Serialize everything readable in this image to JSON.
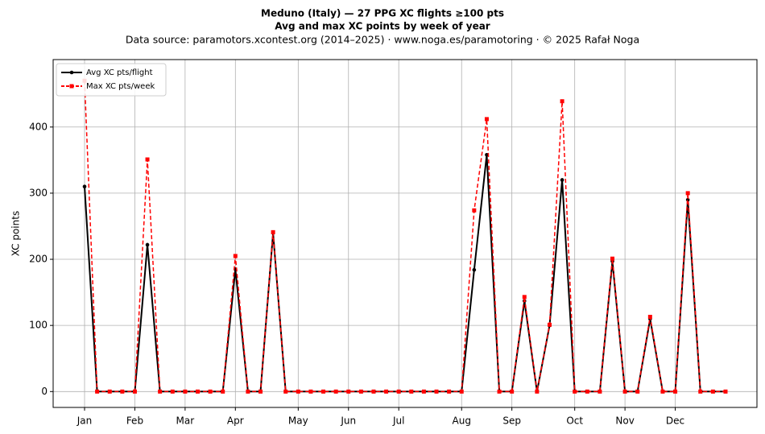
{
  "chart_data": {
    "type": "line",
    "title": "Meduno (Italy)  —  27 PPG XC flights ≥100 pts",
    "subtitle": "Avg and max XC points by week of year",
    "source": "Data source: paramotors.xcontest.org (2014–2025)  ·  www.noga.es/paramotoring  ·  © 2025 Rafał Noga",
    "y_label": "XC points",
    "x": [
      1,
      2,
      3,
      4,
      5,
      6,
      7,
      8,
      9,
      10,
      11,
      12,
      13,
      14,
      15,
      16,
      17,
      18,
      19,
      20,
      21,
      22,
      23,
      24,
      25,
      26,
      27,
      28,
      29,
      30,
      31,
      32,
      33,
      34,
      35,
      36,
      37,
      38,
      39,
      40,
      41,
      42,
      43,
      44,
      45,
      46,
      47,
      48,
      49,
      50,
      51,
      52
    ],
    "series": [
      {
        "name": "Avg XC pts/flight",
        "color": "#000000",
        "dash": "solid",
        "marker": "circle",
        "values": [
          310,
          0,
          0,
          0,
          0,
          222,
          0,
          0,
          0,
          0,
          0,
          0,
          185,
          0,
          0,
          240,
          0,
          0,
          0,
          0,
          0,
          0,
          0,
          0,
          0,
          0,
          0,
          0,
          0,
          0,
          0,
          184,
          358,
          0,
          0,
          137,
          0,
          100,
          320,
          0,
          0,
          0,
          197,
          0,
          0,
          110,
          0,
          0,
          290,
          0,
          0,
          0
        ]
      },
      {
        "name": "Max XC pts/week",
        "color": "#ff0000",
        "dash": "dashed",
        "marker": "square",
        "values": [
          470,
          0,
          0,
          0,
          0,
          351,
          0,
          0,
          0,
          0,
          0,
          0,
          205,
          0,
          0,
          241,
          0,
          0,
          0,
          0,
          0,
          0,
          0,
          0,
          0,
          0,
          0,
          0,
          0,
          0,
          0,
          274,
          412,
          0,
          0,
          143,
          0,
          101,
          439,
          0,
          0,
          0,
          201,
          0,
          0,
          113,
          0,
          0,
          300,
          0,
          0,
          0
        ]
      }
    ],
    "xlim": [
      -1.5,
      54.5
    ],
    "ylim": [
      -24,
      502
    ],
    "xticks": [
      {
        "value": 1,
        "label": "Jan"
      },
      {
        "value": 5,
        "label": "Feb"
      },
      {
        "value": 9,
        "label": "Mar"
      },
      {
        "value": 13,
        "label": "Apr"
      },
      {
        "value": 18,
        "label": "May"
      },
      {
        "value": 22,
        "label": "Jun"
      },
      {
        "value": 26,
        "label": "Jul"
      },
      {
        "value": 31,
        "label": "Aug"
      },
      {
        "value": 35,
        "label": "Sep"
      },
      {
        "value": 40,
        "label": "Oct"
      },
      {
        "value": 44,
        "label": "Nov"
      },
      {
        "value": 48,
        "label": "Dec"
      }
    ],
    "yticks": [
      0,
      100,
      200,
      300,
      400
    ],
    "grid": true,
    "legend": "upper-left"
  }
}
